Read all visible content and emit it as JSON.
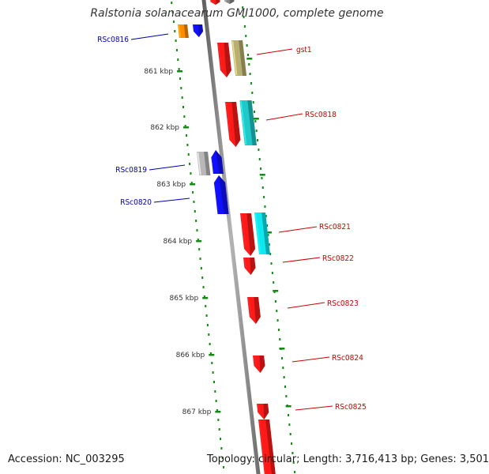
{
  "title": "Ralstonia solanacearum GMI1000, complete genome",
  "footer": {
    "accession": "Accession: NC_003295",
    "topology": "Topology: circular; Length: 3,716,413 bp; Genes: 3,501"
  },
  "colors": {
    "backbone": "#8c8c8c",
    "tick": "#128a12",
    "forward_label": "#cc0000",
    "reverse_label": "#0000aa"
  },
  "ticks": [
    "861 kbp",
    "862 kbp",
    "863 kbp",
    "864 kbp",
    "865 kbp",
    "866 kbp",
    "867 kbp"
  ],
  "genes": [
    {
      "id": "top-gray-a",
      "color": "#888888",
      "label": ""
    },
    {
      "id": "top-red-a",
      "color": "#ff1a1a",
      "label": ""
    },
    {
      "id": "RSc0816-orange",
      "color": "#ff8c00",
      "label": ""
    },
    {
      "id": "RSc0816",
      "color": "#1010ff",
      "label": "RSc0816",
      "strand": "reverse"
    },
    {
      "id": "gst1-red",
      "color": "#ff1a1a",
      "label": ""
    },
    {
      "id": "gst1",
      "color": "#b8b070",
      "label": "gst1",
      "strand": "forward"
    },
    {
      "id": "RSc0818-red",
      "color": "#ff1a1a",
      "label": ""
    },
    {
      "id": "RSc0818",
      "color": "#20c8c8",
      "label": "RSc0818",
      "strand": "forward"
    },
    {
      "id": "RSc0819-gray",
      "color": "#b8b8b8",
      "label": ""
    },
    {
      "id": "RSc0819",
      "color": "#1010ff",
      "label": "RSc0819",
      "strand": "reverse"
    },
    {
      "id": "RSc0820",
      "color": "#1010ff",
      "label": "RSc0820",
      "strand": "reverse"
    },
    {
      "id": "RSc0821-red",
      "color": "#ff1a1a",
      "label": ""
    },
    {
      "id": "RSc0821",
      "color": "#10e8f0",
      "label": "RSc0821",
      "strand": "forward"
    },
    {
      "id": "RSc0822",
      "color": "#ff1a1a",
      "label": "RSc0822",
      "strand": "forward"
    },
    {
      "id": "RSc0823",
      "color": "#ff1a1a",
      "label": "RSc0823",
      "strand": "forward"
    },
    {
      "id": "RSc0824",
      "color": "#ff1a1a",
      "label": "RSc0824",
      "strand": "forward"
    },
    {
      "id": "RSc0825",
      "color": "#ff1a1a",
      "label": "RSc0825",
      "strand": "forward"
    },
    {
      "id": "bottom-red",
      "color": "#ff1a1a",
      "label": ""
    }
  ]
}
